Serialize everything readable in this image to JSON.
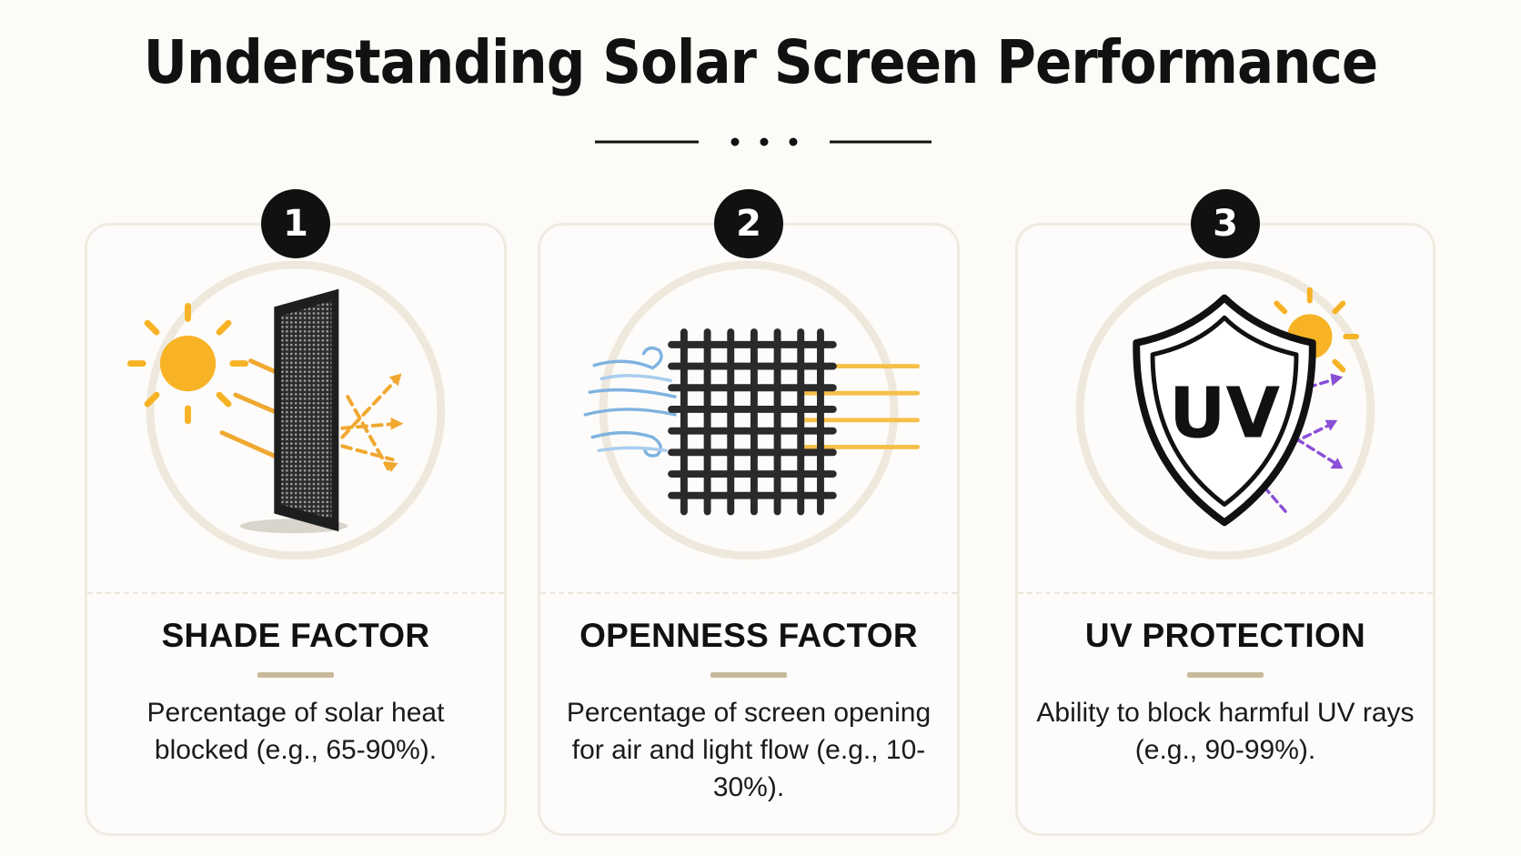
{
  "title": "Understanding Solar Screen Performance",
  "cards": [
    {
      "number": "1",
      "title": "SHADE FACTOR",
      "description": "Percentage of solar heat blocked (e.g., 65-90%).",
      "illustration": "sun-and-screen-icon"
    },
    {
      "number": "2",
      "title": "OPENNESS FACTOR",
      "description": "Percentage of screen opening for air and light flow (e.g., 10-30%).",
      "illustration": "mesh-airflow-icon"
    },
    {
      "number": "3",
      "title": "UV PROTECTION",
      "description": "Ability to block harmful UV rays (e.g., 90-99%).",
      "illustration": "uv-shield-icon",
      "shield_text": "UV"
    }
  ],
  "colors": {
    "sun": "#f7b325",
    "ray_orange": "#f0a830",
    "ray_purple": "#8a4fd6",
    "air_blue": "#7fb3e0",
    "accent_rule": "#c9b99b",
    "card_border": "#f0ebe1",
    "ink": "#111111"
  }
}
